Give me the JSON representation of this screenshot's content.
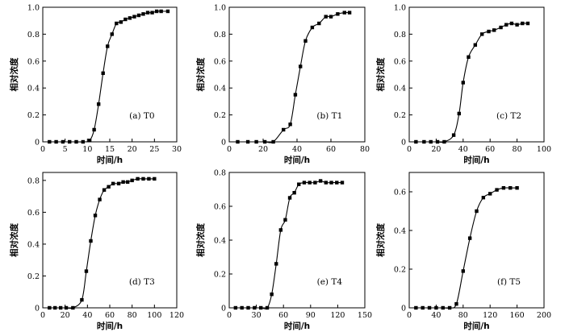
{
  "chart_data": [
    {
      "type": "line",
      "annotation": "(a) T0",
      "xlabel": "时间/h",
      "ylabel": "相对浓度",
      "xlim": [
        0,
        30
      ],
      "ylim": [
        0,
        1.0
      ],
      "xticks": [
        "0",
        "5",
        "10",
        "15",
        "20",
        "25",
        "30"
      ],
      "yticks": [
        "0",
        "0.2",
        "0.4",
        "0.6",
        "0.8",
        "1.0"
      ],
      "x": [
        1.5,
        3,
        4.5,
        6,
        7.5,
        9,
        10.5,
        11.5,
        12.5,
        13.5,
        14.5,
        15.5,
        16.5,
        17.5,
        18.5,
        19.5,
        20.5,
        21.5,
        22.5,
        23.5,
        24.5,
        25.5,
        26.5,
        28
      ],
      "y": [
        0,
        0,
        0,
        0,
        0,
        0,
        0.01,
        0.09,
        0.28,
        0.51,
        0.71,
        0.8,
        0.88,
        0.89,
        0.91,
        0.92,
        0.93,
        0.94,
        0.95,
        0.96,
        0.96,
        0.97,
        0.97,
        0.97
      ]
    },
    {
      "type": "line",
      "annotation": "(b) T1",
      "xlabel": "时间/h",
      "ylabel": "相对浓度",
      "xlim": [
        0,
        80
      ],
      "ylim": [
        0,
        1.0
      ],
      "xticks": [
        "0",
        "20",
        "40",
        "60",
        "80"
      ],
      "yticks": [
        "0",
        "0.2",
        "0.4",
        "0.6",
        "0.8",
        "1.0"
      ],
      "x": [
        5,
        11,
        16,
        21,
        26,
        32,
        36,
        39,
        42,
        45,
        49,
        53,
        57,
        60,
        64,
        68,
        71
      ],
      "y": [
        0,
        0,
        0,
        0,
        0,
        0.09,
        0.13,
        0.35,
        0.56,
        0.75,
        0.85,
        0.88,
        0.93,
        0.93,
        0.95,
        0.96,
        0.96
      ]
    },
    {
      "type": "line",
      "annotation": "(c) T2",
      "xlabel": "时间/h",
      "ylabel": "相对浓度",
      "xlim": [
        0,
        100
      ],
      "ylim": [
        0,
        1.0
      ],
      "xticks": [
        "0",
        "20",
        "40",
        "60",
        "80",
        "100"
      ],
      "yticks": [
        "0",
        "0.2",
        "0.4",
        "0.6",
        "0.8",
        "1.0"
      ],
      "x": [
        5,
        11,
        16,
        21,
        26,
        33,
        37,
        40,
        44,
        49,
        54,
        59,
        63,
        68,
        72,
        76,
        80,
        84,
        88
      ],
      "y": [
        0,
        0,
        0,
        0,
        0,
        0.05,
        0.21,
        0.44,
        0.63,
        0.72,
        0.8,
        0.82,
        0.83,
        0.85,
        0.87,
        0.88,
        0.87,
        0.88,
        0.88
      ]
    },
    {
      "type": "line",
      "annotation": "(d) T3",
      "xlabel": "时间/h",
      "ylabel": "相对浓度",
      "xlim": [
        0,
        120
      ],
      "ylim": [
        0,
        0.85
      ],
      "xticks": [
        "0",
        "20",
        "40",
        "60",
        "80",
        "100",
        "120"
      ],
      "yticks": [
        "0",
        "0.2",
        "0.4",
        "0.6",
        "0.8"
      ],
      "x": [
        6,
        11,
        16,
        21,
        27,
        35,
        39,
        43,
        47,
        51,
        55,
        59,
        63,
        68,
        72,
        76,
        80,
        85,
        90,
        95,
        100
      ],
      "y": [
        0,
        0,
        0,
        0,
        0,
        0.05,
        0.23,
        0.42,
        0.58,
        0.68,
        0.74,
        0.76,
        0.78,
        0.78,
        0.79,
        0.79,
        0.8,
        0.81,
        0.81,
        0.81,
        0.81
      ]
    },
    {
      "type": "line",
      "annotation": "(e) T4",
      "xlabel": "时间/h",
      "ylabel": "相对浓度",
      "xlim": [
        0,
        150
      ],
      "ylim": [
        0,
        0.8
      ],
      "xticks": [
        "0",
        "30",
        "60",
        "90",
        "120",
        "150"
      ],
      "yticks": [
        "0",
        "0.2",
        "0.4",
        "0.6",
        "0.8"
      ],
      "x": [
        7,
        14,
        21,
        28,
        35,
        42,
        47,
        52,
        57,
        62,
        67,
        72,
        77,
        83,
        89,
        95,
        101,
        107,
        113,
        119,
        125
      ],
      "y": [
        0,
        0,
        0,
        0,
        0,
        0,
        0.08,
        0.26,
        0.46,
        0.52,
        0.65,
        0.68,
        0.73,
        0.74,
        0.74,
        0.74,
        0.75,
        0.74,
        0.74,
        0.74,
        0.74
      ]
    },
    {
      "type": "line",
      "annotation": "(f) T5",
      "xlabel": "时间/h",
      "ylabel": "相对浓度",
      "xlim": [
        0,
        200
      ],
      "ylim": [
        0,
        0.7
      ],
      "xticks": [
        "0",
        "40",
        "80",
        "120",
        "160",
        "200"
      ],
      "yticks": [
        "0",
        "0.2",
        "0.4",
        "0.6"
      ],
      "x": [
        10,
        20,
        30,
        40,
        50,
        60,
        70,
        80,
        90,
        100,
        110,
        120,
        130,
        140,
        150,
        160
      ],
      "y": [
        0,
        0,
        0,
        0,
        0,
        0,
        0.02,
        0.19,
        0.36,
        0.5,
        0.57,
        0.59,
        0.61,
        0.62,
        0.62,
        0.62
      ]
    }
  ]
}
